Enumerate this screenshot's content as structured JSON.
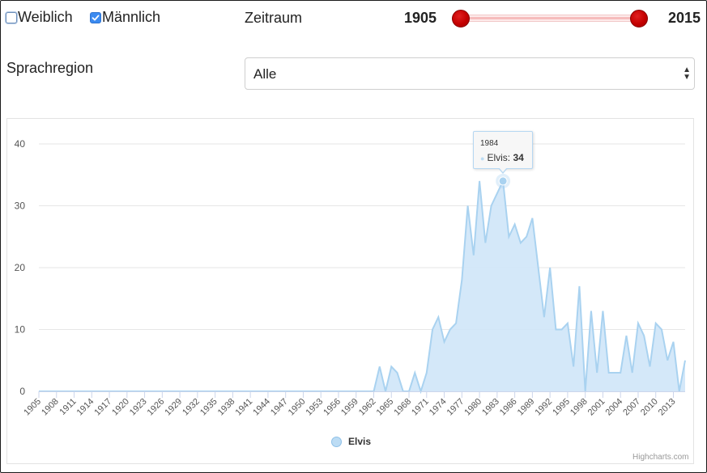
{
  "filters": {
    "female_label": "Weiblich",
    "female_checked": false,
    "male_label": "Männlich",
    "male_checked": true,
    "period_label": "Zeitraum",
    "period_min": "1905",
    "period_max": "2015",
    "region_label": "Sprachregion",
    "region_value": "Alle"
  },
  "colors": {
    "series_fill": "#cfe6f8",
    "series_line": "#a9d2f0",
    "slider_handle": "#c40000",
    "checkbox_checked": "#3b8af0"
  },
  "tooltip": {
    "year": "1984",
    "series": "Elvis",
    "value": "34"
  },
  "credits": "Highcharts.com",
  "chart_data": {
    "type": "area",
    "title": "",
    "xlabel": "",
    "ylabel": "",
    "ylim": [
      0,
      40
    ],
    "yticks": [
      0,
      10,
      20,
      30,
      40
    ],
    "grid": true,
    "legend": "bottom-center",
    "x_tick_labels": [
      "1905",
      "1908",
      "1911",
      "1914",
      "1917",
      "1920",
      "1923",
      "1926",
      "1929",
      "1932",
      "1935",
      "1938",
      "1941",
      "1944",
      "1947",
      "1950",
      "1953",
      "1956",
      "1959",
      "1962",
      "1965",
      "1968",
      "1971",
      "1974",
      "1977",
      "1980",
      "1983",
      "1986",
      "1989",
      "1992",
      "1995",
      "1998",
      "2001",
      "2004",
      "2007",
      "2010",
      "2013"
    ],
    "x": [
      1905,
      1906,
      1907,
      1908,
      1909,
      1910,
      1911,
      1912,
      1913,
      1914,
      1915,
      1916,
      1917,
      1918,
      1919,
      1920,
      1921,
      1922,
      1923,
      1924,
      1925,
      1926,
      1927,
      1928,
      1929,
      1930,
      1931,
      1932,
      1933,
      1934,
      1935,
      1936,
      1937,
      1938,
      1939,
      1940,
      1941,
      1942,
      1943,
      1944,
      1945,
      1946,
      1947,
      1948,
      1949,
      1950,
      1951,
      1952,
      1953,
      1954,
      1955,
      1956,
      1957,
      1958,
      1959,
      1960,
      1961,
      1962,
      1963,
      1964,
      1965,
      1966,
      1967,
      1968,
      1969,
      1970,
      1971,
      1972,
      1973,
      1974,
      1975,
      1976,
      1977,
      1978,
      1979,
      1980,
      1981,
      1982,
      1983,
      1984,
      1985,
      1986,
      1987,
      1988,
      1989,
      1990,
      1991,
      1992,
      1993,
      1994,
      1995,
      1996,
      1997,
      1998,
      1999,
      2000,
      2001,
      2002,
      2003,
      2004,
      2005,
      2006,
      2007,
      2008,
      2009,
      2010,
      2011,
      2012,
      2013,
      2014,
      2015
    ],
    "series": [
      {
        "name": "Elvis",
        "values": [
          0,
          0,
          0,
          0,
          0,
          0,
          0,
          0,
          0,
          0,
          0,
          0,
          0,
          0,
          0,
          0,
          0,
          0,
          0,
          0,
          0,
          0,
          0,
          0,
          0,
          0,
          0,
          0,
          0,
          0,
          0,
          0,
          0,
          0,
          0,
          0,
          0,
          0,
          0,
          0,
          0,
          0,
          0,
          0,
          0,
          0,
          0,
          0,
          0,
          0,
          0,
          0,
          0,
          0,
          0,
          0,
          0,
          0,
          4,
          0,
          4,
          3,
          0,
          0,
          3,
          0,
          3,
          10,
          12,
          8,
          10,
          11,
          18,
          30,
          22,
          34,
          24,
          30,
          32,
          34,
          25,
          27,
          24,
          25,
          28,
          20,
          12,
          20,
          10,
          10,
          11,
          4,
          17,
          0,
          13,
          3,
          13,
          3,
          3,
          3,
          9,
          3,
          11,
          9,
          4,
          11,
          10,
          5,
          8,
          0,
          5
        ]
      }
    ]
  }
}
